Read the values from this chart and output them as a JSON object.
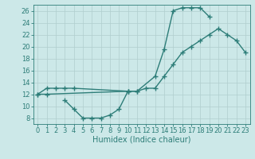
{
  "curve1_x": [
    0,
    1,
    2,
    3,
    4,
    10,
    11,
    13,
    14,
    15,
    16,
    17,
    18,
    19
  ],
  "curve1_y": [
    12,
    13,
    13,
    13,
    13,
    12.5,
    12.5,
    15,
    19.5,
    26,
    26.5,
    26.5,
    26.5,
    25
  ],
  "curve2_x": [
    0,
    1,
    10,
    11,
    12,
    13,
    14,
    15,
    16,
    17,
    18,
    19,
    20,
    21,
    22,
    23
  ],
  "curve2_y": [
    12,
    12,
    12.5,
    12.5,
    13,
    13,
    15,
    17,
    19,
    20,
    21,
    22,
    23,
    22,
    21,
    19
  ],
  "curve3_x": [
    3,
    4,
    5,
    6,
    7,
    8,
    9,
    10
  ],
  "curve3_y": [
    11,
    9.5,
    8,
    8,
    8,
    8.5,
    9.5,
    12.5
  ],
  "color": "#2d7d78",
  "bg_color": "#cce8e8",
  "grid_color": "#b0cece",
  "xlabel": "Humidex (Indice chaleur)",
  "xlim": [
    -0.5,
    23.5
  ],
  "ylim": [
    7,
    27
  ],
  "xticks": [
    0,
    1,
    2,
    3,
    4,
    5,
    6,
    7,
    8,
    9,
    10,
    11,
    12,
    13,
    14,
    15,
    16,
    17,
    18,
    19,
    20,
    21,
    22,
    23
  ],
  "yticks": [
    8,
    10,
    12,
    14,
    16,
    18,
    20,
    22,
    24,
    26
  ],
  "marker": "+",
  "markersize": 4,
  "linewidth": 1.0,
  "xlabel_fontsize": 7,
  "tick_fontsize": 6
}
